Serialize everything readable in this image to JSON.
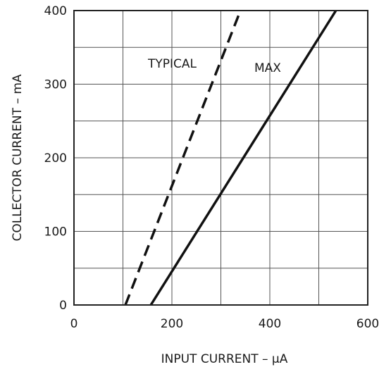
{
  "chart_data": {
    "type": "line",
    "title": "",
    "xlabel": "INPUT CURRENT – μA",
    "ylabel": "COLLECTOR CURRENT – mA",
    "xlim": [
      0,
      600
    ],
    "ylim": [
      0,
      400
    ],
    "x_ticks": [
      0,
      200,
      400,
      600
    ],
    "x_tick_labels": [
      "0",
      "200",
      "400",
      "600"
    ],
    "y_ticks": [
      0,
      100,
      200,
      300,
      400
    ],
    "y_tick_labels": [
      "0",
      "100",
      "200",
      "300",
      "400"
    ],
    "x_grid_step": 100,
    "y_grid_step": 50,
    "grid": true,
    "legend": "none",
    "series": [
      {
        "name": "TYPICAL",
        "style": "dashed",
        "color": "#111111",
        "points": [
          [
            105,
            0
          ],
          [
            340,
            400
          ]
        ]
      },
      {
        "name": "MAX",
        "style": "solid",
        "color": "#111111",
        "points": [
          [
            157,
            0
          ],
          [
            535,
            400
          ]
        ]
      }
    ],
    "annotations": [
      {
        "text": "TYPICAL",
        "series": "TYPICAL"
      },
      {
        "text": "MAX",
        "series": "MAX"
      }
    ]
  }
}
